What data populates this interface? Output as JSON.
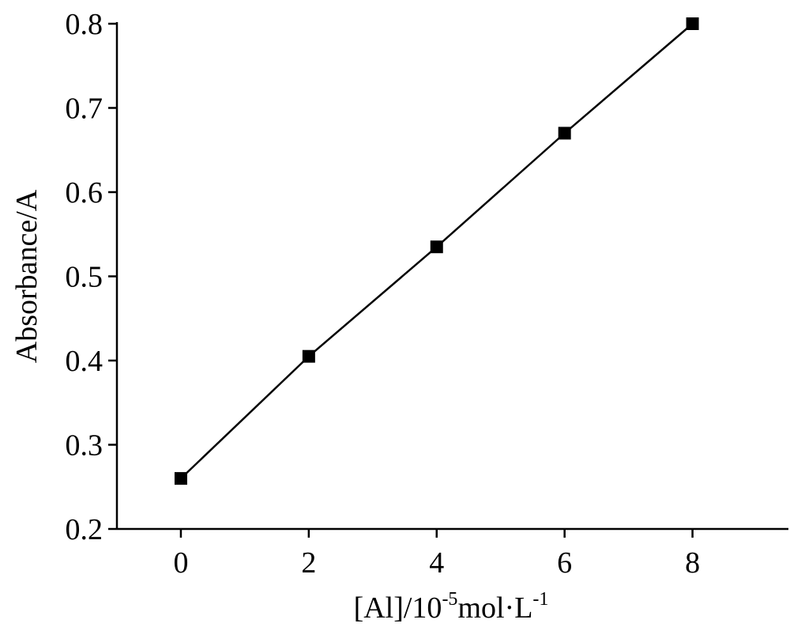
{
  "chart_data": {
    "type": "scatter",
    "title": "",
    "xlabel": {
      "prefix": "[Al]/10",
      "exp1": "-5",
      "mid": "mol·L",
      "exp2": "-1"
    },
    "ylabel": "Absorbance/A",
    "xlim": [
      -1,
      9.5
    ],
    "ylim": [
      0.2,
      0.8
    ],
    "xticks": [
      0,
      2,
      4,
      6,
      8
    ],
    "yticks": [
      0.2,
      0.3,
      0.4,
      0.5,
      0.6,
      0.7,
      0.8
    ],
    "xtick_labels": [
      "0",
      "2",
      "4",
      "6",
      "8"
    ],
    "ytick_labels": [
      "0.2",
      "0.3",
      "0.4",
      "0.5",
      "0.6",
      "0.7",
      "0.8"
    ],
    "grid": false,
    "legend": "none",
    "series": [
      {
        "marker": "square",
        "line": "linear-fit",
        "color": "#000000",
        "x": [
          0,
          2,
          4,
          6,
          8
        ],
        "y": [
          0.26,
          0.405,
          0.535,
          0.67,
          0.8
        ]
      }
    ]
  }
}
